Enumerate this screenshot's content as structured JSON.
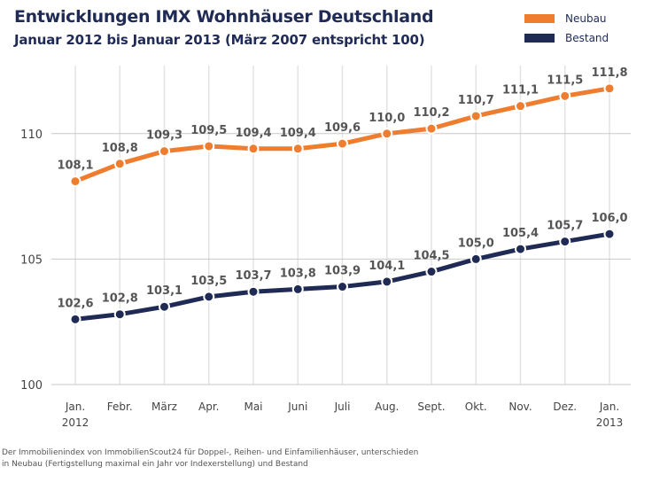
{
  "header": {
    "title": "Entwicklungen IMX Wohnhäuser Deutschland",
    "subtitle": "Januar 2012 bis Januar 2013 (März 2007 entspricht 100)"
  },
  "footnote": {
    "line1": "Der Immobilienindex von ImmobilienScout24 für Doppel-, Reihen- und Einfamilienhäuser, unterschieden",
    "line2": "in Neubau (Fertigstellung maximal ein Jahr vor Indexerstellung) und Bestand"
  },
  "chart_data": {
    "type": "line",
    "title": "Entwicklungen IMX Wohnhäuser Deutschland",
    "subtitle": "Januar 2012 bis Januar 2013 (März 2007 entspricht 100)",
    "categories": [
      [
        "Jan.",
        "2012"
      ],
      [
        "Febr."
      ],
      [
        "März"
      ],
      [
        "Apr."
      ],
      [
        "Mai"
      ],
      [
        "Juni"
      ],
      [
        "Juli"
      ],
      [
        "Aug."
      ],
      [
        "Sept."
      ],
      [
        "Okt."
      ],
      [
        "Nov."
      ],
      [
        "Dez."
      ],
      [
        "Jan.",
        "2013"
      ]
    ],
    "yticks": [
      "100",
      "105",
      "110"
    ],
    "ylim": [
      100,
      112.5
    ],
    "grid": "vertical",
    "legend_position": "top-right",
    "series": [
      {
        "name": "Neubau",
        "color": "#ee7d2f",
        "values": [
          108.1,
          108.8,
          109.3,
          109.5,
          109.4,
          109.4,
          109.6,
          110.0,
          110.2,
          110.7,
          111.1,
          111.5,
          111.8
        ],
        "labels": [
          "108,1",
          "108,8",
          "109,3",
          "109,5",
          "109,4",
          "109,4",
          "109,6",
          "110,0",
          "110,2",
          "110,7",
          "111,1",
          "111,5",
          "111,8"
        ]
      },
      {
        "name": "Bestand",
        "color": "#1f2b55",
        "values": [
          102.6,
          102.8,
          103.1,
          103.5,
          103.7,
          103.8,
          103.9,
          104.1,
          104.5,
          105.0,
          105.4,
          105.7,
          106.0
        ],
        "labels": [
          "102,6",
          "102,8",
          "103,1",
          "103,5",
          "103,7",
          "103,8",
          "103,9",
          "104,1",
          "104,5",
          "105,0",
          "105,4",
          "105,7",
          "106,0"
        ]
      }
    ]
  }
}
